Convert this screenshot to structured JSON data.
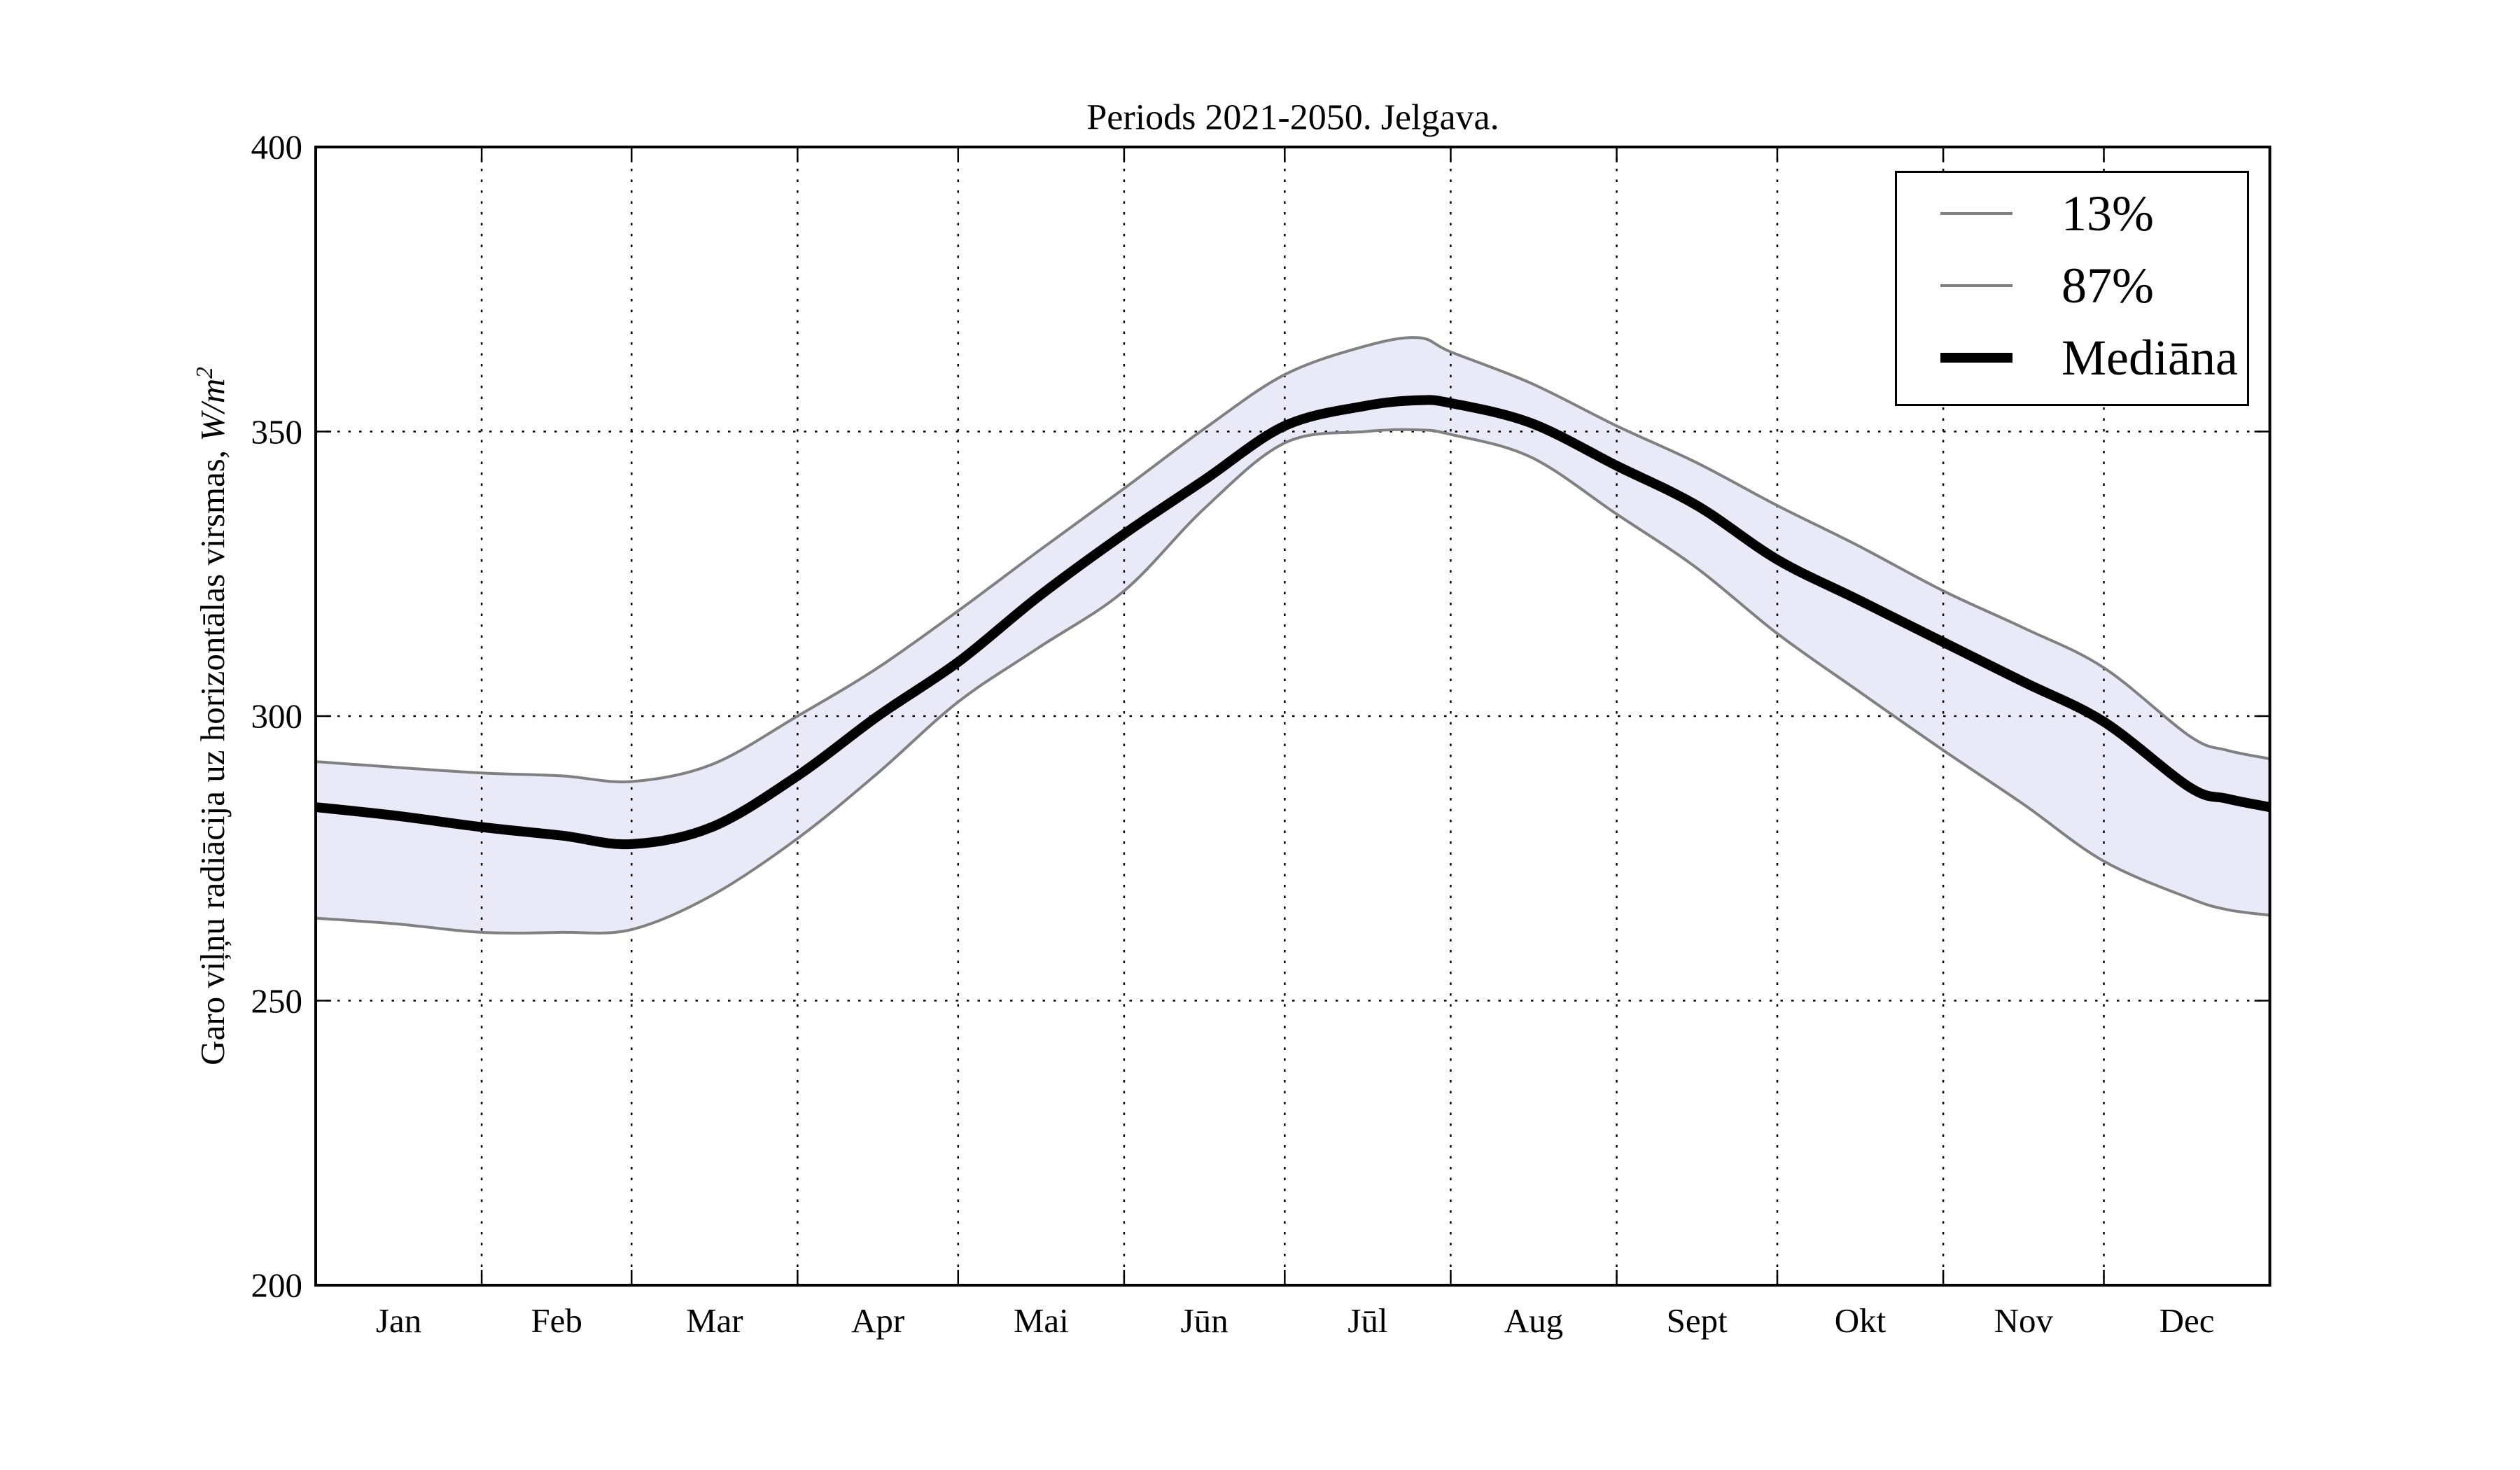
{
  "title": "Periods 2021-2050. Jelgava.",
  "y_axis": {
    "label_prefix": "Garo viļņu radiācija uz horizontālas virsmas, ",
    "label_unit": "W/m",
    "label_exponent": "2",
    "tick_labels": [
      "400",
      "350",
      "300",
      "250",
      "200"
    ]
  },
  "x_axis": {
    "tick_labels": [
      "Jan",
      "Feb",
      "Mar",
      "Apr",
      "Mai",
      "Jūn",
      "Jūl",
      "Aug",
      "Sept",
      "Okt",
      "Nov",
      "Dec"
    ]
  },
  "legend": {
    "items": [
      {
        "label": "13%",
        "color": "#808080",
        "line_width": 4
      },
      {
        "label": "87%",
        "color": "#808080",
        "line_width": 4
      },
      {
        "label": "Mediāna",
        "color": "#000000",
        "line_width": 14
      }
    ]
  },
  "colors": {
    "background": "#ffffff",
    "band_fill": "#e9e9f8",
    "percentile_line": "#808080",
    "median_line": "#000000",
    "axis_frame": "#000000",
    "grid": "#000000",
    "text": "#000000"
  },
  "chart_data": {
    "type": "line",
    "title": "Periods 2021-2050. Jelgava.",
    "xlabel": "",
    "ylabel": "Garo viļņu radiācija uz horizontālas virsmas, W/m²",
    "ylim": [
      200,
      400
    ],
    "yticks": [
      200,
      250,
      300,
      350,
      400
    ],
    "grid": "dotted black: horizontal at 250/300/350, vertical at interior month boundaries",
    "legend_position": "upper right",
    "band_between": [
      "13%",
      "87%"
    ],
    "xtick_month_labels": [
      "Jan",
      "Feb",
      "Mar",
      "Apr",
      "Mai",
      "Jūn",
      "Jūl",
      "Aug",
      "Sept",
      "Okt",
      "Nov",
      "Dec"
    ],
    "month_boundary_days": [
      0,
      31,
      59,
      90,
      120,
      151,
      181,
      212,
      243,
      273,
      304,
      334,
      365
    ],
    "days_in_year": 365,
    "sample_days": [
      0,
      15,
      31,
      46,
      59,
      74,
      90,
      105,
      120,
      135,
      151,
      166,
      181,
      196,
      206,
      212,
      227,
      243,
      258,
      273,
      288,
      304,
      319,
      334,
      350,
      357,
      365
    ],
    "series": [
      {
        "name": "13%",
        "role": "lower-percentile",
        "values": [
          264.5,
          263.5,
          262,
          262,
          262.5,
          268.5,
          278.5,
          290,
          302.5,
          312,
          322,
          336.5,
          348,
          350,
          350.3,
          349.5,
          345.5,
          335.5,
          326,
          314.5,
          304.5,
          294,
          284.5,
          274.5,
          268,
          266,
          265
        ]
      },
      {
        "name": "87%",
        "role": "upper-percentile",
        "values": [
          292,
          291,
          290,
          289.5,
          288.5,
          291.5,
          300,
          308.5,
          318.5,
          329,
          340,
          350.5,
          360,
          365,
          366.5,
          364,
          358.5,
          351,
          344.5,
          337,
          330,
          322,
          315.5,
          308.5,
          296.5,
          294,
          292.5
        ]
      },
      {
        "name": "Mediāna",
        "role": "median",
        "values": [
          284,
          282.5,
          280.5,
          279,
          277.5,
          280.5,
          289.5,
          300,
          309.5,
          321,
          332,
          341.5,
          351,
          354.5,
          355.5,
          355,
          351.5,
          344,
          337,
          327.5,
          320.5,
          313,
          306,
          299,
          287.5,
          285.5,
          284
        ]
      }
    ]
  }
}
